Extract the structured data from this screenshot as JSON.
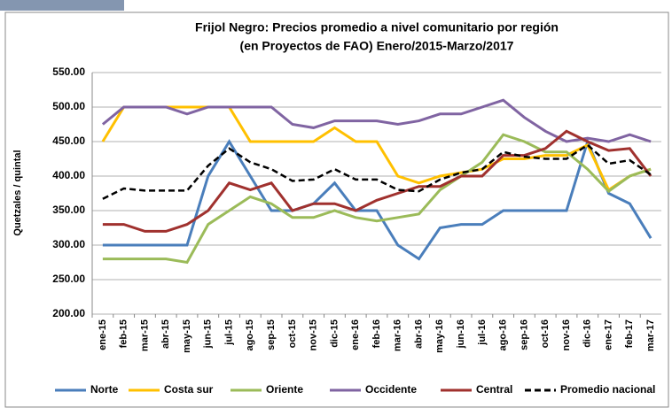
{
  "chart_data": {
    "type": "line",
    "title": "Frijol Negro: Precios promedio a nivel comunitario por región",
    "subtitle": "(en Proyectos de FAO)  Enero/2015-Marzo/2017",
    "y_label": "Quetzales / quintal",
    "categories": [
      "ene-15",
      "feb-15",
      "mar-15",
      "abr-15",
      "may-15",
      "jun-15",
      "jul-15",
      "ago-15",
      "sep-15",
      "oct-15",
      "nov-15",
      "dic-15",
      "ene-16",
      "feb-16",
      "mar-16",
      "abr-16",
      "may-16",
      "jun-16",
      "jul-16",
      "ago-16",
      "sep-16",
      "oct-16",
      "nov-16",
      "dic-16",
      "ene-17",
      "feb-17",
      "mar-17"
    ],
    "series": [
      {
        "name": "Norte",
        "color": "#4a7ebb",
        "values": [
          300,
          300,
          300,
          300,
          300,
          400,
          450,
          400,
          350,
          350,
          360,
          390,
          350,
          350,
          300,
          280,
          325,
          330,
          330,
          350,
          350,
          350,
          350,
          450,
          375,
          360,
          310
        ]
      },
      {
        "name": "Costa sur",
        "color": "#ffc000",
        "values": [
          450,
          500,
          500,
          500,
          500,
          500,
          500,
          450,
          450,
          450,
          450,
          470,
          450,
          450,
          400,
          390,
          400,
          405,
          410,
          425,
          425,
          430,
          430,
          445,
          380,
          400,
          410
        ]
      },
      {
        "name": "Oriente",
        "color": "#9bbb59",
        "values": [
          280,
          280,
          280,
          280,
          275,
          330,
          350,
          370,
          360,
          340,
          340,
          350,
          340,
          335,
          340,
          345,
          380,
          400,
          420,
          460,
          450,
          435,
          435,
          410,
          378,
          400,
          410
        ]
      },
      {
        "name": "Occidente",
        "color": "#8064a2",
        "values": [
          475,
          500,
          500,
          500,
          490,
          500,
          500,
          500,
          500,
          475,
          470,
          480,
          480,
          480,
          475,
          480,
          490,
          490,
          500,
          510,
          485,
          465,
          450,
          455,
          450,
          460,
          450
        ]
      },
      {
        "name": "Central",
        "color": "#a0312e",
        "values": [
          330,
          330,
          320,
          320,
          330,
          350,
          390,
          380,
          390,
          350,
          360,
          360,
          350,
          365,
          375,
          385,
          385,
          400,
          400,
          430,
          430,
          440,
          465,
          450,
          437,
          440,
          400
        ]
      },
      {
        "name": "Promedio nacional",
        "color": "#000000",
        "dashed": true,
        "values": [
          367,
          382,
          379,
          379,
          379,
          415,
          440,
          420,
          410,
          393,
          395,
          410,
          395,
          395,
          380,
          378,
          395,
          405,
          410,
          435,
          428,
          425,
          425,
          445,
          418,
          423,
          402
        ]
      }
    ],
    "ylim": [
      200,
      550
    ],
    "yticks": [
      {
        "value": 200,
        "label": "200.00"
      },
      {
        "value": 250,
        "label": "250.00"
      },
      {
        "value": 300,
        "label": "300.00"
      },
      {
        "value": 350,
        "label": "350.00"
      },
      {
        "value": 400,
        "label": "400.00"
      },
      {
        "value": 450,
        "label": "450.00"
      },
      {
        "value": 500,
        "label": "500.00"
      },
      {
        "value": 550,
        "label": "550.00"
      }
    ],
    "grid": true
  }
}
